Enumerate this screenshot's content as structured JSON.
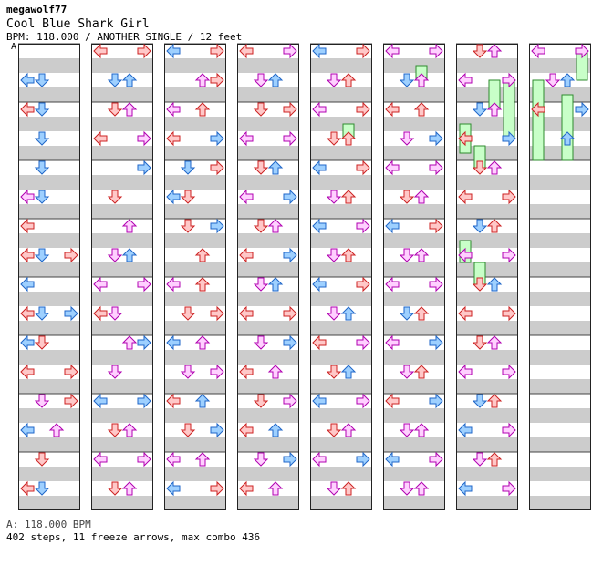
{
  "header": {
    "author": "megawolf77",
    "title": "Cool Blue Shark Girl",
    "meta": "BPM: 118.000 / ANOTHER SINGLE / 12 feet"
  },
  "section_label": "A",
  "footer": {
    "bpm_label": "A: 118.000 BPM",
    "stats": "402 steps, 11 freeze arrows, max combo 436"
  },
  "colors": {
    "band_gray": "#cccccc",
    "red_fill": "#ffc8c8",
    "red_stroke": "#cc2222",
    "blue_fill": "#9ed0ff",
    "blue_stroke": "#1f66c8",
    "pink_fill": "#ffd0ff",
    "pink_stroke": "#b000b0",
    "freeze_fill": "#c8ffc8",
    "freeze_stroke": "#2e8b2e"
  },
  "chart": {
    "measures_per_column": 8,
    "lanes": [
      "left",
      "down",
      "up",
      "right"
    ],
    "rows_per_measure": 16,
    "columns": [
      {
        "index": 1,
        "notes": [
          [
            7,
            0,
            "red"
          ],
          [
            7,
            3,
            "red"
          ],
          [
            9,
            0,
            "red"
          ],
          [
            9,
            3,
            "blue"
          ],
          [
            10,
            0,
            "blue"
          ],
          [
            10,
            1,
            "red"
          ],
          [
            11,
            0,
            "red"
          ],
          [
            11,
            3,
            "red"
          ],
          [
            12,
            1,
            "pink"
          ],
          [
            12,
            3,
            "red"
          ],
          [
            13,
            0,
            "blue"
          ],
          [
            13,
            2,
            "pink"
          ],
          [
            14,
            1,
            "red"
          ],
          [
            15,
            0,
            "red"
          ],
          [
            15,
            1,
            "blue"
          ],
          [
            1,
            0,
            "blue"
          ],
          [
            1,
            1,
            "blue"
          ],
          [
            2,
            0,
            "red"
          ],
          [
            2,
            1,
            "blue"
          ],
          [
            3,
            1,
            "blue"
          ],
          [
            4,
            1,
            "blue"
          ],
          [
            5,
            0,
            "pink"
          ],
          [
            5,
            1,
            "blue"
          ],
          [
            6,
            0,
            "red"
          ],
          [
            7,
            1,
            "blue"
          ],
          [
            8,
            0,
            "blue"
          ],
          [
            9,
            1,
            "blue"
          ]
        ]
      },
      {
        "index": 2,
        "notes": [
          [
            0,
            0,
            "red"
          ],
          [
            0,
            3,
            "red"
          ],
          [
            1,
            1,
            "blue"
          ],
          [
            1,
            2,
            "blue"
          ],
          [
            2,
            1,
            "red"
          ],
          [
            2,
            2,
            "pink"
          ],
          [
            3,
            0,
            "red"
          ],
          [
            3,
            3,
            "pink"
          ],
          [
            4,
            3,
            "blue"
          ],
          [
            5,
            1,
            "red"
          ],
          [
            6,
            2,
            "pink"
          ],
          [
            7,
            1,
            "pink"
          ],
          [
            7,
            2,
            "blue"
          ],
          [
            8,
            0,
            "pink"
          ],
          [
            8,
            3,
            "pink"
          ],
          [
            9,
            0,
            "red"
          ],
          [
            9,
            1,
            "pink"
          ],
          [
            10,
            2,
            "pink"
          ],
          [
            10,
            3,
            "blue"
          ],
          [
            11,
            1,
            "pink"
          ],
          [
            12,
            0,
            "blue"
          ],
          [
            12,
            3,
            "blue"
          ],
          [
            13,
            1,
            "red"
          ],
          [
            13,
            2,
            "pink"
          ],
          [
            14,
            0,
            "pink"
          ],
          [
            14,
            3,
            "pink"
          ],
          [
            15,
            1,
            "red"
          ],
          [
            15,
            2,
            "pink"
          ]
        ]
      },
      {
        "index": 3,
        "notes": [
          [
            0,
            0,
            "blue"
          ],
          [
            0,
            3,
            "red"
          ],
          [
            1,
            2,
            "pink"
          ],
          [
            1,
            3,
            "red"
          ],
          [
            2,
            0,
            "pink"
          ],
          [
            2,
            2,
            "red"
          ],
          [
            3,
            0,
            "red"
          ],
          [
            3,
            3,
            "blue"
          ],
          [
            4,
            1,
            "blue"
          ],
          [
            4,
            3,
            "red"
          ],
          [
            5,
            0,
            "blue"
          ],
          [
            5,
            1,
            "red"
          ],
          [
            6,
            1,
            "red"
          ],
          [
            6,
            3,
            "blue"
          ],
          [
            7,
            2,
            "red"
          ],
          [
            8,
            0,
            "pink"
          ],
          [
            8,
            2,
            "red"
          ],
          [
            9,
            1,
            "red"
          ],
          [
            9,
            3,
            "red"
          ],
          [
            10,
            0,
            "blue"
          ],
          [
            10,
            2,
            "pink"
          ],
          [
            11,
            1,
            "pink"
          ],
          [
            11,
            3,
            "pink"
          ],
          [
            12,
            0,
            "red"
          ],
          [
            12,
            2,
            "blue"
          ],
          [
            13,
            1,
            "red"
          ],
          [
            13,
            3,
            "blue"
          ],
          [
            14,
            0,
            "pink"
          ],
          [
            14,
            2,
            "pink"
          ],
          [
            15,
            0,
            "blue"
          ],
          [
            15,
            3,
            "red"
          ]
        ]
      },
      {
        "index": 4,
        "notes": [
          [
            0,
            0,
            "red"
          ],
          [
            0,
            3,
            "pink"
          ],
          [
            1,
            1,
            "pink"
          ],
          [
            1,
            2,
            "blue"
          ],
          [
            2,
            1,
            "red"
          ],
          [
            2,
            3,
            "red"
          ],
          [
            3,
            0,
            "pink"
          ],
          [
            3,
            3,
            "pink"
          ],
          [
            4,
            1,
            "red"
          ],
          [
            4,
            2,
            "blue"
          ],
          [
            5,
            0,
            "pink"
          ],
          [
            5,
            3,
            "blue"
          ],
          [
            6,
            1,
            "red"
          ],
          [
            6,
            2,
            "pink"
          ],
          [
            7,
            0,
            "red"
          ],
          [
            7,
            3,
            "blue"
          ],
          [
            8,
            1,
            "pink"
          ],
          [
            8,
            2,
            "blue"
          ],
          [
            9,
            0,
            "red"
          ],
          [
            9,
            3,
            "red"
          ],
          [
            10,
            1,
            "pink"
          ],
          [
            10,
            3,
            "blue"
          ],
          [
            11,
            0,
            "red"
          ],
          [
            11,
            2,
            "pink"
          ],
          [
            12,
            1,
            "red"
          ],
          [
            12,
            3,
            "pink"
          ],
          [
            13,
            0,
            "red"
          ],
          [
            13,
            2,
            "blue"
          ],
          [
            14,
            1,
            "pink"
          ],
          [
            14,
            3,
            "blue"
          ],
          [
            15,
            0,
            "red"
          ],
          [
            15,
            2,
            "pink"
          ]
        ]
      },
      {
        "index": 5,
        "notes": [
          [
            0,
            0,
            "blue"
          ],
          [
            0,
            3,
            "red"
          ],
          [
            1,
            1,
            "pink"
          ],
          [
            1,
            2,
            "red"
          ],
          [
            2,
            0,
            "pink"
          ],
          [
            2,
            3,
            "red"
          ],
          [
            3,
            1,
            "red"
          ],
          [
            3,
            2,
            "red"
          ],
          [
            4,
            0,
            "blue"
          ],
          [
            4,
            3,
            "red"
          ],
          [
            5,
            1,
            "pink"
          ],
          [
            5,
            2,
            "red"
          ],
          [
            6,
            0,
            "blue"
          ],
          [
            6,
            3,
            "pink"
          ],
          [
            7,
            1,
            "pink"
          ],
          [
            7,
            2,
            "red"
          ],
          [
            8,
            0,
            "blue"
          ],
          [
            8,
            3,
            "red"
          ],
          [
            9,
            1,
            "pink"
          ],
          [
            9,
            2,
            "blue"
          ],
          [
            10,
            0,
            "red"
          ],
          [
            10,
            3,
            "pink"
          ],
          [
            11,
            1,
            "red"
          ],
          [
            11,
            2,
            "blue"
          ],
          [
            12,
            0,
            "blue"
          ],
          [
            12,
            3,
            "pink"
          ],
          [
            13,
            1,
            "red"
          ],
          [
            13,
            2,
            "pink"
          ],
          [
            14,
            0,
            "pink"
          ],
          [
            14,
            3,
            "blue"
          ],
          [
            15,
            1,
            "pink"
          ],
          [
            15,
            2,
            "red"
          ]
        ]
      },
      {
        "index": 6,
        "notes": [
          [
            0,
            0,
            "pink"
          ],
          [
            0,
            3,
            "pink"
          ],
          [
            1,
            1,
            "blue"
          ],
          [
            1,
            2,
            "pink"
          ],
          [
            2,
            0,
            "red"
          ],
          [
            2,
            2,
            "red"
          ],
          [
            3,
            1,
            "pink"
          ],
          [
            3,
            3,
            "blue"
          ],
          [
            4,
            0,
            "pink"
          ],
          [
            4,
            3,
            "pink"
          ],
          [
            5,
            1,
            "red"
          ],
          [
            5,
            2,
            "pink"
          ],
          [
            6,
            0,
            "blue"
          ],
          [
            6,
            3,
            "red"
          ],
          [
            7,
            1,
            "pink"
          ],
          [
            7,
            2,
            "pink"
          ],
          [
            8,
            0,
            "pink"
          ],
          [
            8,
            3,
            "pink"
          ],
          [
            9,
            1,
            "blue"
          ],
          [
            9,
            2,
            "red"
          ],
          [
            10,
            0,
            "pink"
          ],
          [
            10,
            3,
            "blue"
          ],
          [
            11,
            1,
            "pink"
          ],
          [
            11,
            2,
            "red"
          ],
          [
            12,
            0,
            "red"
          ],
          [
            12,
            3,
            "blue"
          ],
          [
            13,
            1,
            "pink"
          ],
          [
            13,
            2,
            "pink"
          ],
          [
            14,
            0,
            "blue"
          ],
          [
            14,
            3,
            "pink"
          ],
          [
            15,
            1,
            "pink"
          ],
          [
            15,
            2,
            "pink"
          ]
        ]
      },
      {
        "index": 7,
        "notes": [
          [
            0,
            1,
            "red"
          ],
          [
            0,
            2,
            "pink"
          ],
          [
            1,
            0,
            "pink"
          ],
          [
            1,
            3,
            "pink"
          ],
          [
            2,
            1,
            "blue"
          ],
          [
            2,
            2,
            "pink"
          ],
          [
            3,
            0,
            "red"
          ],
          [
            3,
            3,
            "blue"
          ],
          [
            4,
            1,
            "red"
          ],
          [
            4,
            2,
            "pink"
          ],
          [
            5,
            0,
            "red"
          ],
          [
            5,
            3,
            "red"
          ],
          [
            6,
            1,
            "blue"
          ],
          [
            6,
            2,
            "red"
          ],
          [
            7,
            0,
            "pink"
          ],
          [
            7,
            3,
            "pink"
          ],
          [
            8,
            1,
            "red"
          ],
          [
            8,
            2,
            "blue"
          ],
          [
            9,
            0,
            "red"
          ],
          [
            9,
            3,
            "red"
          ],
          [
            10,
            1,
            "red"
          ],
          [
            10,
            2,
            "pink"
          ],
          [
            11,
            0,
            "pink"
          ],
          [
            11,
            3,
            "pink"
          ],
          [
            12,
            1,
            "blue"
          ],
          [
            12,
            2,
            "red"
          ],
          [
            13,
            0,
            "blue"
          ],
          [
            13,
            3,
            "pink"
          ],
          [
            14,
            1,
            "pink"
          ],
          [
            14,
            2,
            "red"
          ],
          [
            15,
            0,
            "blue"
          ],
          [
            15,
            3,
            "pink"
          ]
        ]
      },
      {
        "index": 8,
        "notes": [
          [
            0,
            0,
            "pink"
          ],
          [
            0,
            3,
            "pink"
          ],
          [
            1,
            1,
            "pink"
          ],
          [
            1,
            2,
            "blue"
          ],
          [
            2,
            0,
            "red"
          ],
          [
            2,
            3,
            "blue"
          ],
          [
            3,
            2,
            "blue"
          ]
        ]
      }
    ],
    "freezes": [
      [
        5,
        2,
        11,
        13
      ],
      [
        6,
        2,
        3,
        5
      ],
      [
        7,
        2,
        5,
        9
      ],
      [
        7,
        3,
        5,
        13
      ],
      [
        7,
        0,
        11,
        15
      ],
      [
        7,
        1,
        14,
        17
      ],
      [
        8,
        3,
        1,
        5
      ],
      [
        8,
        0,
        5,
        16
      ],
      [
        8,
        2,
        7,
        16
      ],
      [
        7,
        0,
        27,
        30
      ],
      [
        7,
        1,
        30,
        33
      ]
    ]
  }
}
